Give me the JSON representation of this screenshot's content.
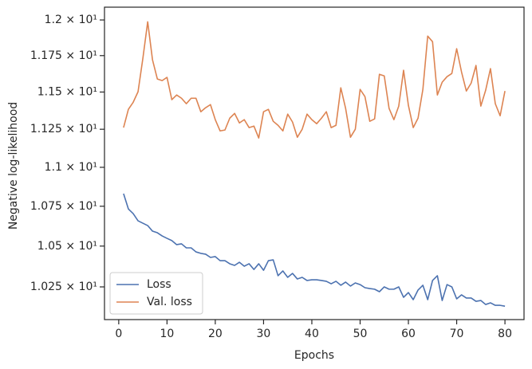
{
  "chart_data": {
    "type": "line",
    "xlabel": "Epochs",
    "ylabel": "Negative log-likelihood",
    "x": [
      1,
      2,
      3,
      4,
      5,
      6,
      7,
      8,
      9,
      10,
      11,
      12,
      13,
      14,
      15,
      16,
      17,
      18,
      19,
      20,
      21,
      22,
      23,
      24,
      25,
      26,
      27,
      28,
      29,
      30,
      31,
      32,
      33,
      34,
      35,
      36,
      37,
      38,
      39,
      40,
      41,
      42,
      43,
      44,
      45,
      46,
      47,
      48,
      49,
      50,
      51,
      52,
      53,
      54,
      55,
      56,
      57,
      58,
      59,
      60,
      61,
      62,
      63,
      64,
      65,
      66,
      67,
      68,
      69,
      70,
      71,
      72,
      73,
      74,
      75,
      76,
      77,
      78,
      79,
      80
    ],
    "series": [
      {
        "name": "Loss",
        "color": "#4c72b0",
        "values": [
          10.83,
          10.733,
          10.703,
          10.658,
          10.643,
          10.628,
          10.593,
          10.583,
          10.563,
          10.548,
          10.534,
          10.509,
          10.514,
          10.489,
          10.489,
          10.464,
          10.455,
          10.45,
          10.43,
          10.435,
          10.41,
          10.41,
          10.391,
          10.381,
          10.4,
          10.376,
          10.391,
          10.356,
          10.391,
          10.351,
          10.41,
          10.415,
          10.318,
          10.347,
          10.308,
          10.332,
          10.298,
          10.308,
          10.289,
          10.293,
          10.293,
          10.289,
          10.284,
          10.269,
          10.284,
          10.26,
          10.279,
          10.255,
          10.274,
          10.264,
          10.245,
          10.24,
          10.236,
          10.221,
          10.25,
          10.236,
          10.236,
          10.25,
          10.187,
          10.216,
          10.173,
          10.231,
          10.26,
          10.173,
          10.289,
          10.318,
          10.168,
          10.264,
          10.25,
          10.178,
          10.202,
          10.183,
          10.183,
          10.163,
          10.168,
          10.144,
          10.154,
          10.139,
          10.139,
          10.134
        ]
      },
      {
        "name": "Val. loss",
        "color": "#dd8452",
        "values": [
          11.261,
          11.383,
          11.431,
          11.502,
          11.731,
          11.987,
          11.72,
          11.589,
          11.578,
          11.6,
          11.448,
          11.48,
          11.458,
          11.421,
          11.458,
          11.458,
          11.367,
          11.394,
          11.415,
          11.314,
          11.239,
          11.245,
          11.324,
          11.356,
          11.292,
          11.314,
          11.261,
          11.271,
          11.192,
          11.367,
          11.383,
          11.303,
          11.276,
          11.239,
          11.351,
          11.298,
          11.197,
          11.25,
          11.351,
          11.314,
          11.287,
          11.324,
          11.367,
          11.261,
          11.276,
          11.529,
          11.389,
          11.197,
          11.25,
          11.518,
          11.469,
          11.303,
          11.319,
          11.621,
          11.61,
          11.389,
          11.314,
          11.405,
          11.649,
          11.41,
          11.261,
          11.324,
          11.518,
          11.886,
          11.847,
          11.48,
          11.567,
          11.605,
          11.627,
          11.798,
          11.638,
          11.507,
          11.561,
          11.682,
          11.405,
          11.512,
          11.66,
          11.421,
          11.34,
          11.507
        ]
      }
    ],
    "xlim": [
      -2.95,
      83.95
    ],
    "xticks": [
      0,
      10,
      20,
      30,
      40,
      50,
      60,
      70,
      80
    ],
    "ylim": [
      10.054,
      12.091
    ],
    "ylog": true,
    "yticks": [
      {
        "value": 10.25,
        "label": "1.025 × 10¹"
      },
      {
        "value": 10.5,
        "label": "1.05 × 10¹"
      },
      {
        "value": 10.75,
        "label": "1.075 × 10¹"
      },
      {
        "value": 11,
        "label": "1.1 × 10¹"
      },
      {
        "value": 11.25,
        "label": "1.125 × 10¹"
      },
      {
        "value": 11.5,
        "label": "1.15 × 10¹"
      },
      {
        "value": 11.75,
        "label": "1.175 × 10¹"
      },
      {
        "value": 12,
        "label": "1.2 × 10¹"
      }
    ],
    "legend": "lower left",
    "grid": false
  }
}
